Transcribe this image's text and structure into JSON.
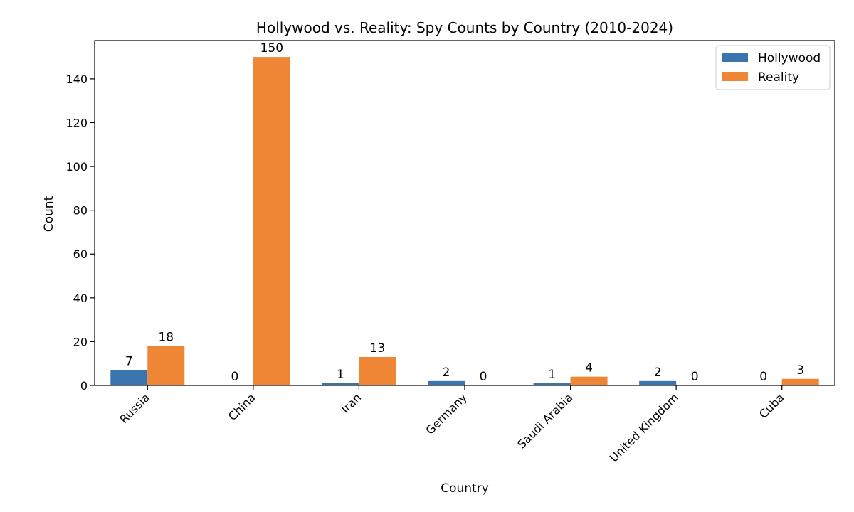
{
  "chart_data": {
    "type": "bar",
    "title": "Hollywood vs. Reality: Spy Counts by Country (2010-2024)",
    "xlabel": "Country",
    "ylabel": "Count",
    "categories": [
      "Russia",
      "China",
      "Iran",
      "Germany",
      "Saudi Arabia",
      "United Kingdom",
      "Cuba"
    ],
    "series": [
      {
        "name": "Hollywood",
        "values": [
          7,
          0,
          1,
          2,
          1,
          2,
          0
        ],
        "color": "#3a75af"
      },
      {
        "name": "Reality",
        "values": [
          18,
          150,
          13,
          0,
          4,
          0,
          3
        ],
        "color": "#ef8636"
      }
    ],
    "ylim": [
      0,
      157.5
    ],
    "yticks": [
      0,
      20,
      40,
      60,
      80,
      100,
      120,
      140
    ],
    "grid": false,
    "legend_position": "top-right",
    "data_labels": true
  }
}
